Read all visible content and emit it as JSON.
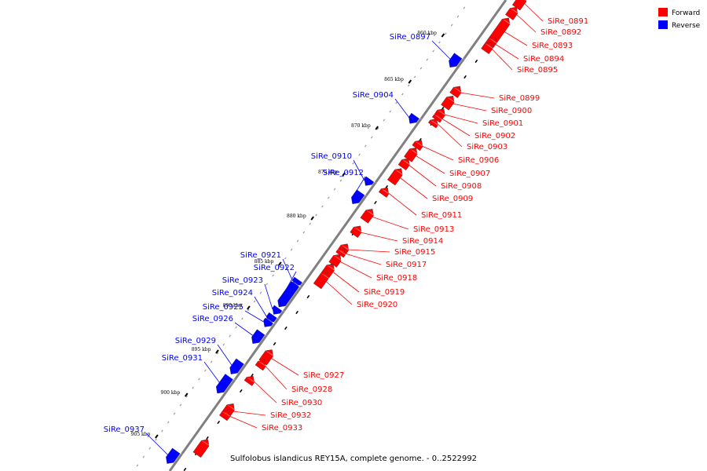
{
  "caption": "Sulfolobus islandicus REY15A, complete genome. - 0..2522992",
  "legend": [
    {
      "label": "Forward",
      "color": "#ff0000"
    },
    {
      "label": "Reverse",
      "color": "#0000ff"
    }
  ],
  "colors": {
    "forward": "#ff0000",
    "reverse": "#0000ff",
    "backbone": "#808080"
  },
  "scale": {
    "unit": "kbp",
    "ticks": [
      "860 kbp",
      "865 kbp",
      "870 kbp",
      "875 kbp",
      "880 kbp",
      "885 kbp",
      "890 kbp",
      "895 kbp",
      "900 kbp",
      "905 kbp"
    ]
  },
  "genes": {
    "forward": [
      "SiRe_0891",
      "SiRe_0892",
      "SiRe_0893",
      "SiRe_0894",
      "SiRe_0895",
      "SiRe_0899",
      "SiRe_0900",
      "SiRe_0901",
      "SiRe_0902",
      "SiRe_0903",
      "SiRe_0906",
      "SiRe_0907",
      "SiRe_0908",
      "SiRe_0909",
      "SiRe_0911",
      "SiRe_0913",
      "SiRe_0914",
      "SiRe_0915",
      "SiRe_0917",
      "SiRe_0918",
      "SiRe_0919",
      "SiRe_0920",
      "SiRe_0927",
      "SiRe_0928",
      "SiRe_0930",
      "SiRe_0932",
      "SiRe_0933"
    ],
    "reverse": [
      "SiRe_0897",
      "SiRe_0904",
      "SiRe_0910",
      "SiRe_0912",
      "SiRe_0921",
      "SiRe_0922",
      "SiRe_0923",
      "SiRe_0924",
      "SiRe_0925",
      "SiRe_0926",
      "SiRe_0929",
      "SiRe_0931",
      "SiRe_0937"
    ]
  }
}
